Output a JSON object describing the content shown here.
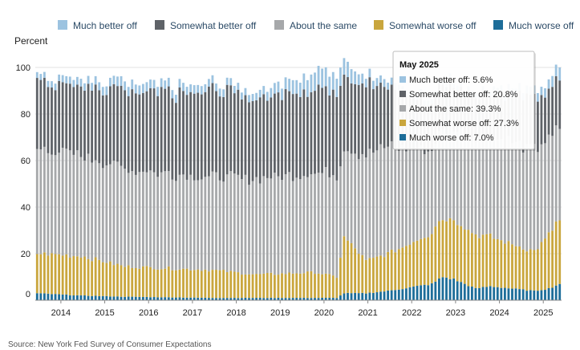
{
  "chart_data": {
    "type": "bar",
    "stacked": true,
    "ylabel": "Percent",
    "ylim": [
      0,
      100
    ],
    "yticks": [
      0,
      20,
      40,
      60,
      80,
      100
    ],
    "x_year_labels": [
      "2014",
      "2015",
      "2016",
      "2017",
      "2018",
      "2019",
      "2020",
      "2021",
      "2022",
      "2023",
      "2024",
      "2025"
    ],
    "x_start": "2013-06",
    "x_end": "2025-05",
    "grid": true,
    "legend_position": "top",
    "series": [
      {
        "name": "Much better off",
        "color": "#9cc3e0",
        "anchors": [
          [
            0,
            2.5
          ],
          [
            24,
            4
          ],
          [
            60,
            3
          ],
          [
            78,
            8
          ],
          [
            83,
            8
          ],
          [
            89,
            4
          ],
          [
            96,
            3
          ],
          [
            108,
            2
          ],
          [
            120,
            2
          ],
          [
            140,
            4
          ],
          [
            143,
            5.6
          ]
        ]
      },
      {
        "name": "Somewhat better off",
        "color": "#5f6368",
        "anchors": [
          [
            0,
            29
          ],
          [
            12,
            30
          ],
          [
            24,
            33
          ],
          [
            48,
            37
          ],
          [
            60,
            35
          ],
          [
            76,
            36
          ],
          [
            82,
            37
          ],
          [
            84,
            33
          ],
          [
            90,
            30
          ],
          [
            96,
            26
          ],
          [
            108,
            20
          ],
          [
            120,
            18
          ],
          [
            136,
            22
          ],
          [
            140,
            20
          ],
          [
            143,
            20.8
          ]
        ]
      },
      {
        "name": "About the same",
        "color": "#a6a8aa",
        "anchors": [
          [
            0,
            45
          ],
          [
            24,
            42
          ],
          [
            48,
            40
          ],
          [
            60,
            41
          ],
          [
            76,
            43
          ],
          [
            82,
            44
          ],
          [
            84,
            38
          ],
          [
            90,
            45
          ],
          [
            96,
            46
          ],
          [
            108,
            36
          ],
          [
            114,
            40
          ],
          [
            120,
            42
          ],
          [
            132,
            44
          ],
          [
            138,
            43
          ],
          [
            140,
            40
          ],
          [
            143,
            39.3
          ]
        ]
      },
      {
        "name": "Somewhat worse off",
        "color": "#c9a63d",
        "anchors": [
          [
            0,
            17
          ],
          [
            12,
            17
          ],
          [
            24,
            13
          ],
          [
            48,
            12
          ],
          [
            60,
            10
          ],
          [
            76,
            11
          ],
          [
            82,
            9
          ],
          [
            84,
            24
          ],
          [
            90,
            14
          ],
          [
            96,
            16
          ],
          [
            108,
            22
          ],
          [
            108,
            24
          ],
          [
            114,
            26
          ],
          [
            120,
            23
          ],
          [
            130,
            19
          ],
          [
            136,
            17
          ],
          [
            140,
            23
          ],
          [
            142,
            27
          ],
          [
            143,
            27.3
          ]
        ]
      },
      {
        "name": "Much worse off",
        "color": "#1d6d99",
        "anchors": [
          [
            0,
            3
          ],
          [
            12,
            2
          ],
          [
            24,
            1.5
          ],
          [
            48,
            1
          ],
          [
            60,
            1
          ],
          [
            76,
            1
          ],
          [
            82,
            1
          ],
          [
            84,
            3
          ],
          [
            90,
            3
          ],
          [
            96,
            4
          ],
          [
            104,
            6
          ],
          [
            108,
            7
          ],
          [
            111,
            10
          ],
          [
            114,
            9
          ],
          [
            120,
            5
          ],
          [
            124,
            6
          ],
          [
            130,
            5
          ],
          [
            136,
            4
          ],
          [
            140,
            5
          ],
          [
            143,
            7
          ]
        ]
      }
    ],
    "tooltip": {
      "title": "May 2025",
      "items": [
        {
          "label": "Much better off: 5.6%",
          "color": "#9cc3e0"
        },
        {
          "label": "Somewhat better off: 20.8%",
          "color": "#5f6368"
        },
        {
          "label": "About the same: 39.3%",
          "color": "#a6a8aa"
        },
        {
          "label": "Somewhat worse off: 27.3%",
          "color": "#c9a63d"
        },
        {
          "label": "Much worse off: 7.0%",
          "color": "#1d6d99"
        }
      ]
    }
  },
  "source": "Source: New York Fed Survey of Consumer Expectations"
}
